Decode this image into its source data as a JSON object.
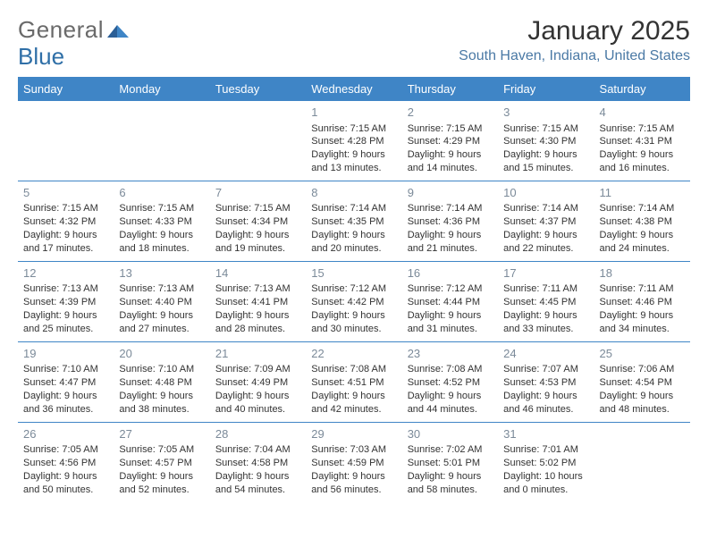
{
  "logo": {
    "text1": "General",
    "text2": "Blue"
  },
  "title": "January 2025",
  "location": "South Haven, Indiana, United States",
  "colors": {
    "header_bg": "#3f85c6",
    "header_fg": "#ffffff",
    "daynum": "#7b8a99",
    "text": "#333333",
    "location": "#4a79a5",
    "row_divider": "#3f85c6",
    "background": "#ffffff"
  },
  "day_headers": [
    "Sunday",
    "Monday",
    "Tuesday",
    "Wednesday",
    "Thursday",
    "Friday",
    "Saturday"
  ],
  "weeks": [
    [
      null,
      null,
      null,
      {
        "n": "1",
        "sr": "Sunrise: 7:15 AM",
        "ss": "Sunset: 4:28 PM",
        "d1": "Daylight: 9 hours",
        "d2": "and 13 minutes."
      },
      {
        "n": "2",
        "sr": "Sunrise: 7:15 AM",
        "ss": "Sunset: 4:29 PM",
        "d1": "Daylight: 9 hours",
        "d2": "and 14 minutes."
      },
      {
        "n": "3",
        "sr": "Sunrise: 7:15 AM",
        "ss": "Sunset: 4:30 PM",
        "d1": "Daylight: 9 hours",
        "d2": "and 15 minutes."
      },
      {
        "n": "4",
        "sr": "Sunrise: 7:15 AM",
        "ss": "Sunset: 4:31 PM",
        "d1": "Daylight: 9 hours",
        "d2": "and 16 minutes."
      }
    ],
    [
      {
        "n": "5",
        "sr": "Sunrise: 7:15 AM",
        "ss": "Sunset: 4:32 PM",
        "d1": "Daylight: 9 hours",
        "d2": "and 17 minutes."
      },
      {
        "n": "6",
        "sr": "Sunrise: 7:15 AM",
        "ss": "Sunset: 4:33 PM",
        "d1": "Daylight: 9 hours",
        "d2": "and 18 minutes."
      },
      {
        "n": "7",
        "sr": "Sunrise: 7:15 AM",
        "ss": "Sunset: 4:34 PM",
        "d1": "Daylight: 9 hours",
        "d2": "and 19 minutes."
      },
      {
        "n": "8",
        "sr": "Sunrise: 7:14 AM",
        "ss": "Sunset: 4:35 PM",
        "d1": "Daylight: 9 hours",
        "d2": "and 20 minutes."
      },
      {
        "n": "9",
        "sr": "Sunrise: 7:14 AM",
        "ss": "Sunset: 4:36 PM",
        "d1": "Daylight: 9 hours",
        "d2": "and 21 minutes."
      },
      {
        "n": "10",
        "sr": "Sunrise: 7:14 AM",
        "ss": "Sunset: 4:37 PM",
        "d1": "Daylight: 9 hours",
        "d2": "and 22 minutes."
      },
      {
        "n": "11",
        "sr": "Sunrise: 7:14 AM",
        "ss": "Sunset: 4:38 PM",
        "d1": "Daylight: 9 hours",
        "d2": "and 24 minutes."
      }
    ],
    [
      {
        "n": "12",
        "sr": "Sunrise: 7:13 AM",
        "ss": "Sunset: 4:39 PM",
        "d1": "Daylight: 9 hours",
        "d2": "and 25 minutes."
      },
      {
        "n": "13",
        "sr": "Sunrise: 7:13 AM",
        "ss": "Sunset: 4:40 PM",
        "d1": "Daylight: 9 hours",
        "d2": "and 27 minutes."
      },
      {
        "n": "14",
        "sr": "Sunrise: 7:13 AM",
        "ss": "Sunset: 4:41 PM",
        "d1": "Daylight: 9 hours",
        "d2": "and 28 minutes."
      },
      {
        "n": "15",
        "sr": "Sunrise: 7:12 AM",
        "ss": "Sunset: 4:42 PM",
        "d1": "Daylight: 9 hours",
        "d2": "and 30 minutes."
      },
      {
        "n": "16",
        "sr": "Sunrise: 7:12 AM",
        "ss": "Sunset: 4:44 PM",
        "d1": "Daylight: 9 hours",
        "d2": "and 31 minutes."
      },
      {
        "n": "17",
        "sr": "Sunrise: 7:11 AM",
        "ss": "Sunset: 4:45 PM",
        "d1": "Daylight: 9 hours",
        "d2": "and 33 minutes."
      },
      {
        "n": "18",
        "sr": "Sunrise: 7:11 AM",
        "ss": "Sunset: 4:46 PM",
        "d1": "Daylight: 9 hours",
        "d2": "and 34 minutes."
      }
    ],
    [
      {
        "n": "19",
        "sr": "Sunrise: 7:10 AM",
        "ss": "Sunset: 4:47 PM",
        "d1": "Daylight: 9 hours",
        "d2": "and 36 minutes."
      },
      {
        "n": "20",
        "sr": "Sunrise: 7:10 AM",
        "ss": "Sunset: 4:48 PM",
        "d1": "Daylight: 9 hours",
        "d2": "and 38 minutes."
      },
      {
        "n": "21",
        "sr": "Sunrise: 7:09 AM",
        "ss": "Sunset: 4:49 PM",
        "d1": "Daylight: 9 hours",
        "d2": "and 40 minutes."
      },
      {
        "n": "22",
        "sr": "Sunrise: 7:08 AM",
        "ss": "Sunset: 4:51 PM",
        "d1": "Daylight: 9 hours",
        "d2": "and 42 minutes."
      },
      {
        "n": "23",
        "sr": "Sunrise: 7:08 AM",
        "ss": "Sunset: 4:52 PM",
        "d1": "Daylight: 9 hours",
        "d2": "and 44 minutes."
      },
      {
        "n": "24",
        "sr": "Sunrise: 7:07 AM",
        "ss": "Sunset: 4:53 PM",
        "d1": "Daylight: 9 hours",
        "d2": "and 46 minutes."
      },
      {
        "n": "25",
        "sr": "Sunrise: 7:06 AM",
        "ss": "Sunset: 4:54 PM",
        "d1": "Daylight: 9 hours",
        "d2": "and 48 minutes."
      }
    ],
    [
      {
        "n": "26",
        "sr": "Sunrise: 7:05 AM",
        "ss": "Sunset: 4:56 PM",
        "d1": "Daylight: 9 hours",
        "d2": "and 50 minutes."
      },
      {
        "n": "27",
        "sr": "Sunrise: 7:05 AM",
        "ss": "Sunset: 4:57 PM",
        "d1": "Daylight: 9 hours",
        "d2": "and 52 minutes."
      },
      {
        "n": "28",
        "sr": "Sunrise: 7:04 AM",
        "ss": "Sunset: 4:58 PM",
        "d1": "Daylight: 9 hours",
        "d2": "and 54 minutes."
      },
      {
        "n": "29",
        "sr": "Sunrise: 7:03 AM",
        "ss": "Sunset: 4:59 PM",
        "d1": "Daylight: 9 hours",
        "d2": "and 56 minutes."
      },
      {
        "n": "30",
        "sr": "Sunrise: 7:02 AM",
        "ss": "Sunset: 5:01 PM",
        "d1": "Daylight: 9 hours",
        "d2": "and 58 minutes."
      },
      {
        "n": "31",
        "sr": "Sunrise: 7:01 AM",
        "ss": "Sunset: 5:02 PM",
        "d1": "Daylight: 10 hours",
        "d2": "and 0 minutes."
      },
      null
    ]
  ]
}
